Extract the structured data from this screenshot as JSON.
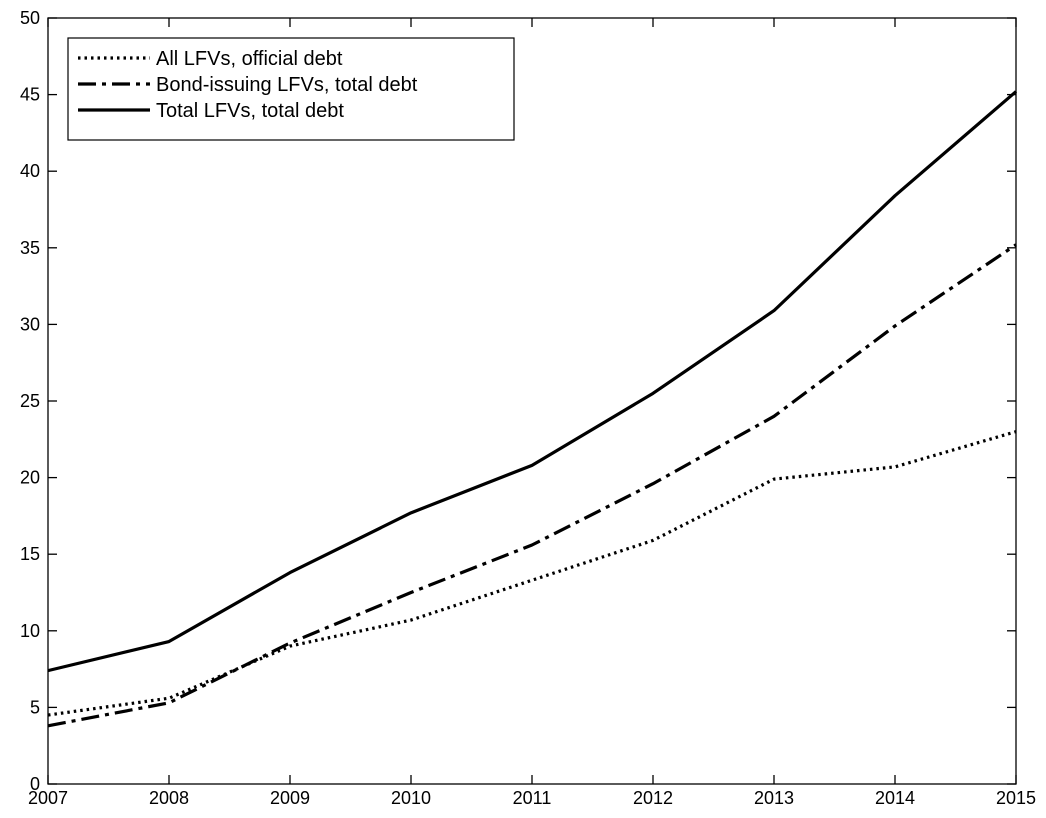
{
  "chart_data": {
    "type": "line",
    "title": "",
    "xlabel": "",
    "ylabel": "",
    "x": [
      2007,
      2008,
      2009,
      2010,
      2011,
      2012,
      2013,
      2014,
      2015
    ],
    "xlim": [
      2007,
      2015
    ],
    "ylim": [
      0,
      50
    ],
    "xticks": [
      2007,
      2008,
      2009,
      2010,
      2011,
      2012,
      2013,
      2014,
      2015
    ],
    "yticks": [
      0,
      5,
      10,
      15,
      20,
      25,
      30,
      35,
      40,
      45,
      50
    ],
    "grid": false,
    "legend_position": "top-left",
    "series": [
      {
        "name": "All LFVs, official debt",
        "line_style": "dotted",
        "color": "#000000",
        "values": [
          4.5,
          5.6,
          9.0,
          10.7,
          13.3,
          15.9,
          19.9,
          20.7,
          23.0
        ]
      },
      {
        "name": "Bond-issuing LFVs, total debt",
        "line_style": "dash-dot",
        "color": "#000000",
        "values": [
          3.8,
          5.3,
          9.2,
          12.5,
          15.6,
          19.6,
          24.0,
          29.9,
          35.2
        ]
      },
      {
        "name": "Total LFVs, total debt",
        "line_style": "solid",
        "color": "#000000",
        "values": [
          7.4,
          9.3,
          13.8,
          17.7,
          20.8,
          25.5,
          30.9,
          38.4,
          45.2
        ]
      }
    ]
  }
}
